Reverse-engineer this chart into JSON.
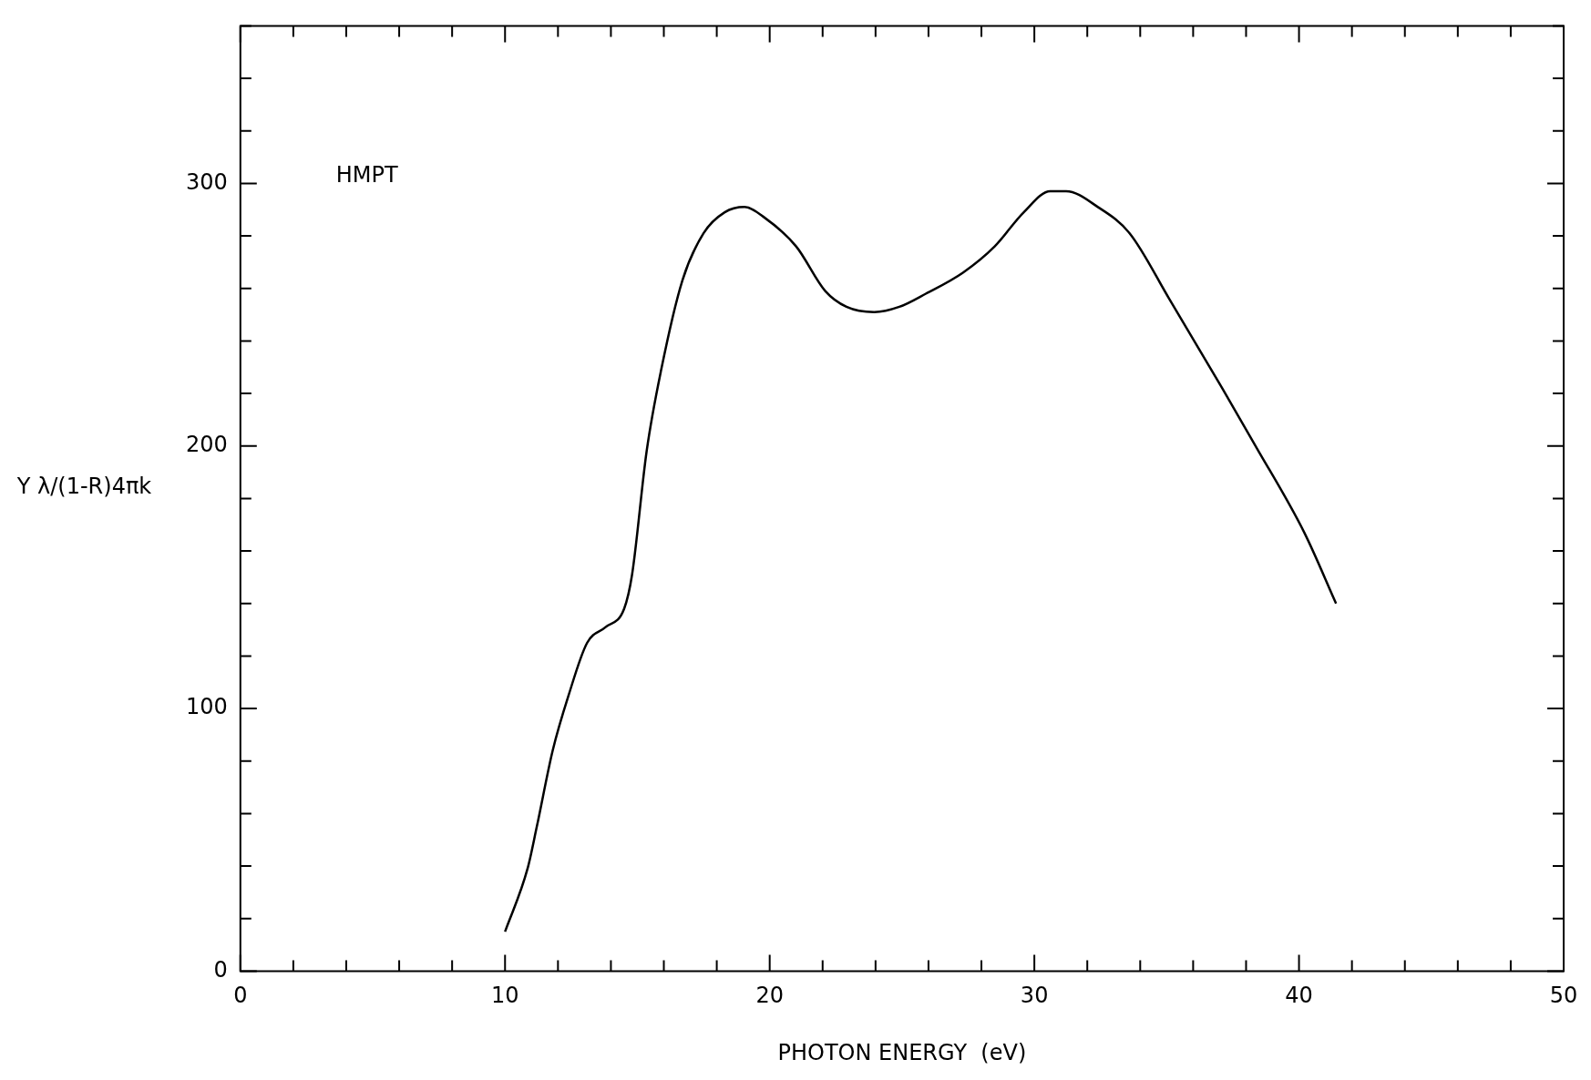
{
  "chart_data": {
    "type": "line",
    "xlabel": "PHOTON ENERGY  (eV)",
    "ylabel": "Y λ/(1-R)4πk",
    "annotations": [
      "HMPT"
    ],
    "x": [
      10.0,
      10.85,
      11.2,
      11.8,
      12.4,
      13.1,
      13.8,
      14.5,
      14.8,
      15.35,
      15.9,
      16.7,
      17.5,
      18.3,
      19.05,
      19.8,
      21.0,
      22.1,
      22.9,
      23.95,
      24.9,
      25.9,
      27.3,
      28.5,
      29.6,
      30.6,
      31.2,
      32.4,
      33.6,
      35.1,
      37.1,
      38.3,
      40.2,
      41.4
    ],
    "series": [
      {
        "color": "#000000",
        "values": [
          15,
          39,
          55,
          84,
          105,
          125,
          131,
          138,
          151,
          198,
          229,
          263,
          281,
          289,
          291,
          287,
          276,
          259,
          253,
          251,
          253,
          258,
          266,
          276,
          289,
          297,
          297,
          291,
          281,
          256,
          222,
          201,
          167,
          140
        ]
      }
    ],
    "xlim": [
      0,
      50
    ],
    "ylim": [
      0,
      360
    ],
    "xticks": [
      0,
      {
        "value": 2,
        "label": null
      },
      {
        "value": 4,
        "label": null
      },
      {
        "value": 6,
        "label": null
      },
      {
        "value": 8,
        "label": null
      },
      10,
      {
        "value": 12,
        "label": null
      },
      {
        "value": 14,
        "label": null
      },
      {
        "value": 16,
        "label": null
      },
      {
        "value": 18,
        "label": null
      },
      20,
      {
        "value": 22,
        "label": null
      },
      {
        "value": 24,
        "label": null
      },
      {
        "value": 26,
        "label": null
      },
      {
        "value": 28,
        "label": null
      },
      30,
      {
        "value": 32,
        "label": null
      },
      {
        "value": 34,
        "label": null
      },
      {
        "value": 36,
        "label": null
      },
      {
        "value": 38,
        "label": null
      },
      40,
      {
        "value": 42,
        "label": null
      },
      {
        "value": 44,
        "label": null
      },
      {
        "value": 46,
        "label": null
      },
      {
        "value": 48,
        "label": null
      },
      50
    ],
    "yticks": [
      0,
      {
        "value": 20,
        "label": null
      },
      {
        "value": 40,
        "label": null
      },
      {
        "value": 60,
        "label": null
      },
      {
        "value": 80,
        "label": null
      },
      100,
      {
        "value": 120,
        "label": null
      },
      {
        "value": 140,
        "label": null
      },
      {
        "value": 160,
        "label": null
      },
      {
        "value": 180,
        "label": null
      },
      200,
      {
        "value": 220,
        "label": null
      },
      {
        "value": 240,
        "label": null
      },
      {
        "value": 260,
        "label": null
      },
      {
        "value": 280,
        "label": null
      },
      300,
      {
        "value": 320,
        "label": null
      },
      {
        "value": 340,
        "label": null
      },
      {
        "value": 360,
        "label": null
      }
    ],
    "grid": false,
    "legend": false,
    "marker": "none",
    "line_style": "solid"
  }
}
